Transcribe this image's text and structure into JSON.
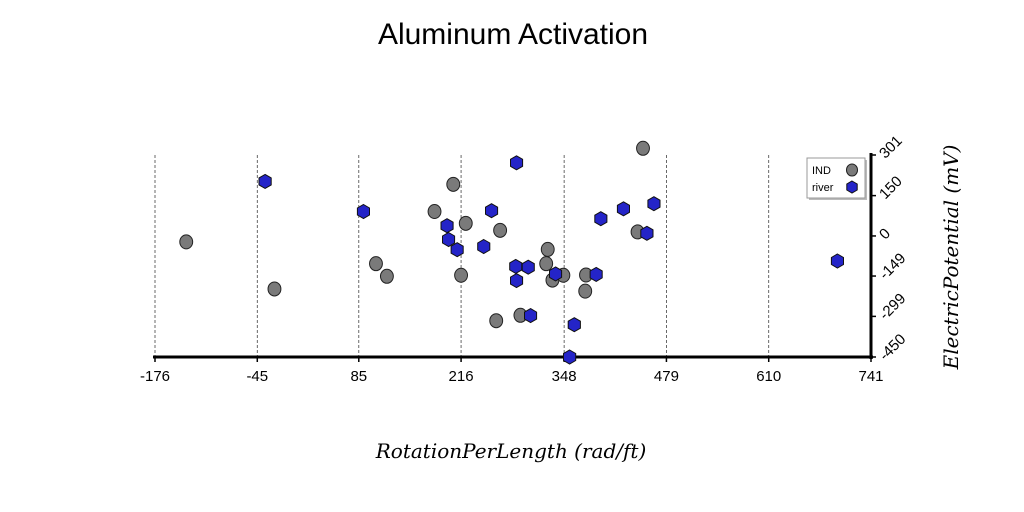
{
  "chart_data": {
    "type": "scatter",
    "title": "Aluminum Activation",
    "xlabel": "RotationPerLength (rad/ft)",
    "ylabel": "ElectricPotential (mV)",
    "xlim": [
      -176,
      741
    ],
    "ylim": [
      -450,
      301
    ],
    "x_ticks": [
      "-176",
      "-45",
      "85",
      "216",
      "348",
      "479",
      "610",
      "741"
    ],
    "y_ticks": [
      "301",
      "150",
      "0",
      "-149",
      "-299",
      "-450"
    ],
    "grid": "vertical dashed",
    "legend_position": "top-right",
    "series": [
      {
        "name": "IND",
        "color": "#7a7a7a",
        "marker": "circle",
        "points": [
          [
            -136,
            -22
          ],
          [
            -23,
            -197
          ],
          [
            107,
            -103
          ],
          [
            121,
            -150
          ],
          [
            182,
            91
          ],
          [
            206,
            192
          ],
          [
            216,
            -146
          ],
          [
            222,
            47
          ],
          [
            261,
            -315
          ],
          [
            266,
            21
          ],
          [
            292,
            -295
          ],
          [
            325,
            -103
          ],
          [
            327,
            -50
          ],
          [
            333,
            -164
          ],
          [
            347,
            -146
          ],
          [
            376,
            -145
          ],
          [
            375,
            -205
          ],
          [
            449,
            326
          ],
          [
            442,
            15
          ]
        ]
      },
      {
        "name": "river",
        "color": "#2424c8",
        "marker": "hexagon",
        "points": [
          [
            -35,
            203
          ],
          [
            91,
            91
          ],
          [
            198,
            38
          ],
          [
            200,
            -13
          ],
          [
            211,
            -51
          ],
          [
            245,
            -39
          ],
          [
            255,
            94
          ],
          [
            287,
            272
          ],
          [
            286,
            -113
          ],
          [
            287,
            -166
          ],
          [
            302,
            -116
          ],
          [
            305,
            -296
          ],
          [
            337,
            -141
          ],
          [
            355,
            -450
          ],
          [
            361,
            -330
          ],
          [
            389,
            -143
          ],
          [
            395,
            64
          ],
          [
            424,
            101
          ],
          [
            454,
            10
          ],
          [
            463,
            120
          ],
          [
            698,
            -93
          ]
        ]
      }
    ]
  }
}
